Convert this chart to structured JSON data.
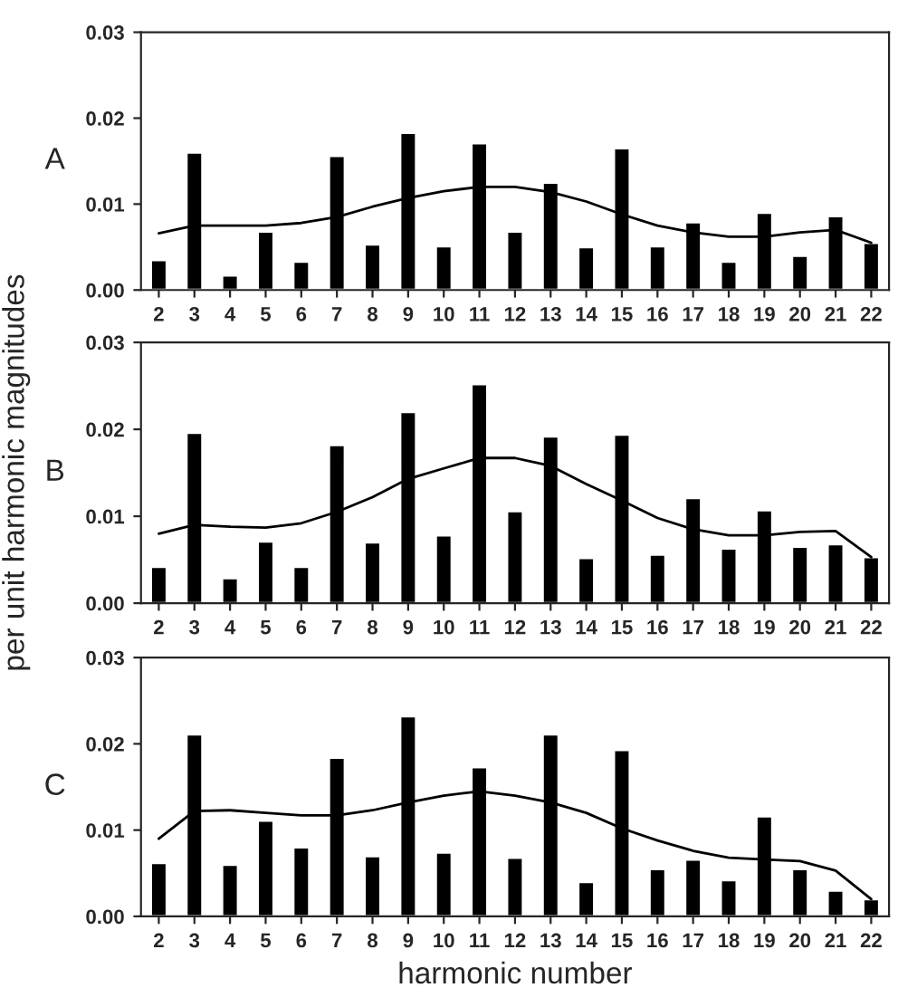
{
  "chart_data": [
    {
      "type": "bar",
      "categories": [
        "2",
        "3",
        "4",
        "5",
        "6",
        "7",
        "8",
        "9",
        "10",
        "11",
        "12",
        "13",
        "14",
        "15",
        "16",
        "17",
        "18",
        "19",
        "20",
        "21",
        "22"
      ],
      "ylim": [
        0,
        0.03
      ],
      "yticks": [
        {
          "value": 0,
          "label": "0.00"
        },
        {
          "value": 0.01,
          "label": "0.01"
        },
        {
          "value": 0.02,
          "label": "0.02"
        },
        {
          "value": 0.03,
          "label": "0.03"
        }
      ],
      "annotations": [
        "A"
      ],
      "grid": false,
      "legend": false,
      "series": [
        {
          "color": "#000000",
          "values": [
            0.0035,
            0.016,
            0.0017,
            0.0068,
            0.0033,
            0.0156,
            0.0053,
            0.0183,
            0.0051,
            0.0171,
            0.0068,
            0.0125,
            0.005,
            0.0165,
            0.0051,
            0.0079,
            0.0033,
            0.009,
            0.004,
            0.0086,
            0.0055
          ]
        },
        {
          "type": "line",
          "color": "#000000",
          "values": [
            0.0066,
            0.0075,
            0.0075,
            0.0075,
            0.0078,
            0.0085,
            0.0097,
            0.0107,
            0.0115,
            0.012,
            0.012,
            0.0114,
            0.0103,
            0.0088,
            0.0075,
            0.0067,
            0.0062,
            0.0062,
            0.0067,
            0.007,
            0.0055
          ]
        }
      ]
    },
    {
      "type": "bar",
      "categories": [
        "2",
        "3",
        "4",
        "5",
        "6",
        "7",
        "8",
        "9",
        "10",
        "11",
        "12",
        "13",
        "14",
        "15",
        "16",
        "17",
        "18",
        "19",
        "20",
        "21",
        "22"
      ],
      "ylim": [
        0,
        0.03
      ],
      "yticks": [
        {
          "value": 0,
          "label": "0.00"
        },
        {
          "value": 0.01,
          "label": "0.01"
        },
        {
          "value": 0.02,
          "label": "0.02"
        },
        {
          "value": 0.03,
          "label": "0.03"
        }
      ],
      "ylabel": "per unit harmonic magnitudes",
      "annotations": [
        "B"
      ],
      "grid": false,
      "legend": false,
      "series": [
        {
          "color": "#000000",
          "values": [
            0.0042,
            0.0196,
            0.0029,
            0.0071,
            0.0042,
            0.0182,
            0.007,
            0.022,
            0.0078,
            0.0252,
            0.0106,
            0.0192,
            0.0052,
            0.0194,
            0.0056,
            0.0121,
            0.0063,
            0.0107,
            0.0065,
            0.0068,
            0.0053
          ]
        },
        {
          "type": "line",
          "color": "#000000",
          "values": [
            0.008,
            0.009,
            0.0088,
            0.0087,
            0.0092,
            0.0105,
            0.0122,
            0.0143,
            0.0155,
            0.0167,
            0.0167,
            0.0158,
            0.0137,
            0.0118,
            0.0098,
            0.0085,
            0.0078,
            0.0078,
            0.0082,
            0.0083,
            0.0053
          ]
        }
      ]
    },
    {
      "type": "bar",
      "categories": [
        "2",
        "3",
        "4",
        "5",
        "6",
        "7",
        "8",
        "9",
        "10",
        "11",
        "12",
        "13",
        "14",
        "15",
        "16",
        "17",
        "18",
        "19",
        "20",
        "21",
        "22"
      ],
      "ylim": [
        0,
        0.03
      ],
      "yticks": [
        {
          "value": 0,
          "label": "0.00"
        },
        {
          "value": 0.01,
          "label": "0.01"
        },
        {
          "value": 0.02,
          "label": "0.02"
        },
        {
          "value": 0.03,
          "label": "0.03"
        }
      ],
      "xlabel": "harmonic number",
      "annotations": [
        "C"
      ],
      "grid": false,
      "legend": false,
      "series": [
        {
          "color": "#000000",
          "values": [
            0.0062,
            0.0211,
            0.006,
            0.0111,
            0.008,
            0.0184,
            0.007,
            0.0232,
            0.0074,
            0.0173,
            0.0068,
            0.0211,
            0.004,
            0.0193,
            0.0055,
            0.0066,
            0.0042,
            0.0116,
            0.0055,
            0.003,
            0.002
          ]
        },
        {
          "type": "line",
          "color": "#000000",
          "values": [
            0.009,
            0.0122,
            0.0123,
            0.012,
            0.0117,
            0.0117,
            0.0123,
            0.0132,
            0.014,
            0.0145,
            0.014,
            0.0132,
            0.012,
            0.0102,
            0.0088,
            0.0076,
            0.0068,
            0.0066,
            0.0064,
            0.0053,
            0.002
          ]
        }
      ]
    }
  ]
}
